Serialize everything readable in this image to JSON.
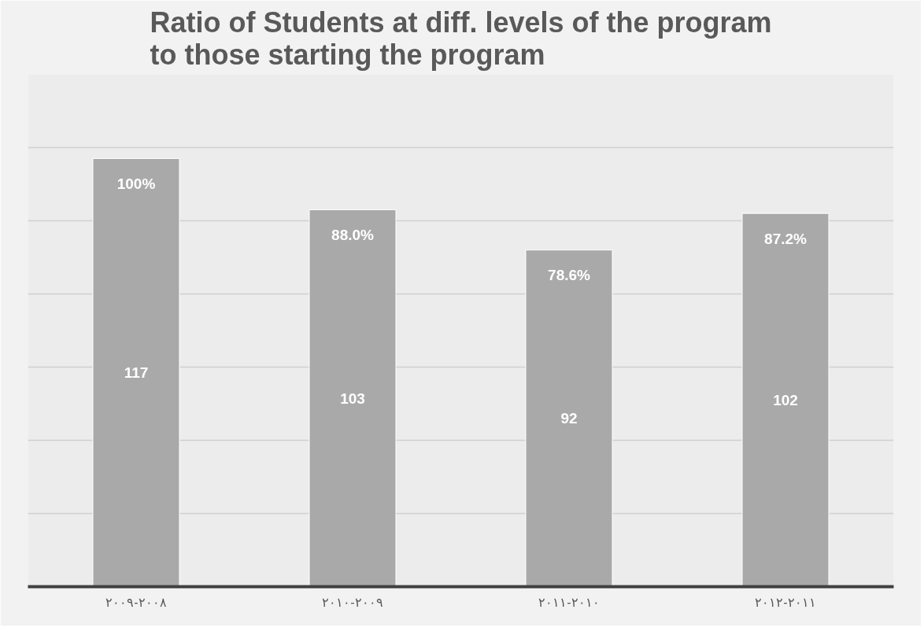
{
  "chart_data": {
    "type": "bar",
    "title": "Ratio of Students at diff. levels of the program\nto those starting the program",
    "categories": [
      "٢٠٠٨-٢٠٠٩",
      "٢٠٠٩-٢٠١٠",
      "٢٠١٠-٢٠١١",
      "٢٠١١-٢٠١٢"
    ],
    "values": [
      117,
      103,
      92,
      102
    ],
    "color": "#a9a9a9",
    "data_labels": true,
    "annotations": [
      {
        "text": "100%",
        "x": "٢٠٠٨-٢٠٠٩",
        "y": 117
      },
      {
        "text": "88.0%",
        "x": "٢٠٠٩-٢٠١٠",
        "y": 103
      },
      {
        "text": "78.6%",
        "x": "٢٠١٠-٢٠١١",
        "y": 92
      },
      {
        "text": "87.2%",
        "x": "٢٠١١-٢٠١٢",
        "y": 102
      }
    ],
    "ylim": [
      0,
      140
    ],
    "yticks": [
      {
        "value": 0,
        "label": null
      },
      {
        "value": 20,
        "label": null
      },
      {
        "value": 40,
        "label": null
      },
      {
        "value": 60,
        "label": null
      },
      {
        "value": 80,
        "label": null
      },
      {
        "value": 100,
        "label": null
      },
      {
        "value": 120,
        "label": null
      },
      {
        "value": 140,
        "label": null
      }
    ],
    "grid": "y",
    "tick_labels": "x"
  }
}
